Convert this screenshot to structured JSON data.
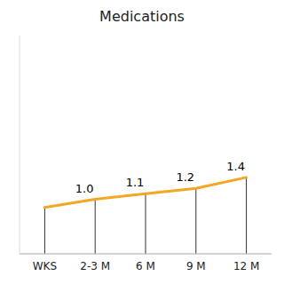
{
  "chart_data": {
    "type": "line",
    "title": "Medications",
    "categories": [
      "WKS",
      "2-3 M",
      "6 M",
      "9 M",
      "12 M"
    ],
    "values": [
      0.85,
      1.0,
      1.1,
      1.2,
      1.4
    ],
    "value_labels": [
      null,
      "1.0",
      "1.1",
      "1.2",
      "1.4"
    ],
    "data_labels": true,
    "color": "#F5A623",
    "ylim": [
      0.0,
      4.0
    ],
    "grid": false,
    "tick_labels": "x"
  }
}
